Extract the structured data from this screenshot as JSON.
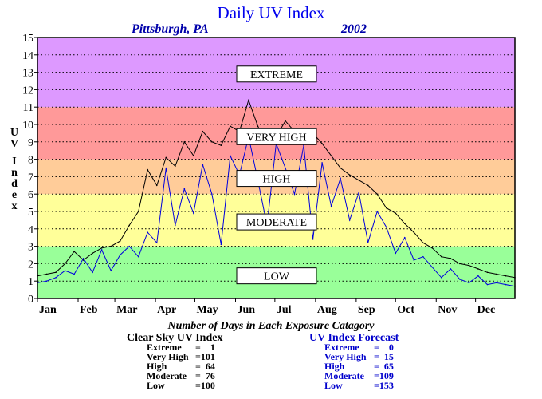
{
  "chart_data": {
    "type": "line",
    "title": "Daily UV Index",
    "subtitle_location": "Pittsburgh, PA",
    "subtitle_year": "2002",
    "ylabel": "UV Index",
    "xlabel": "",
    "ylim": [
      0,
      15
    ],
    "xlim": [
      1,
      365
    ],
    "grid": true,
    "y_ticks": [
      "0",
      "1",
      "2",
      "3",
      "4",
      "5",
      "6",
      "7",
      "8",
      "9",
      "10",
      "11",
      "12",
      "13",
      "14",
      "15"
    ],
    "months": [
      {
        "label": "Jan",
        "day": 1
      },
      {
        "label": "Feb",
        "day": 32
      },
      {
        "label": "Mar",
        "day": 60
      },
      {
        "label": "Apr",
        "day": 91
      },
      {
        "label": "May",
        "day": 121
      },
      {
        "label": "Jun",
        "day": 152
      },
      {
        "label": "Jul",
        "day": 182
      },
      {
        "label": "Aug",
        "day": 213
      },
      {
        "label": "Sep",
        "day": 244
      },
      {
        "label": "Oct",
        "day": 274
      },
      {
        "label": "Nov",
        "day": 305
      },
      {
        "label": "Dec",
        "day": 335
      }
    ],
    "bands": [
      {
        "label": "LOW",
        "from": 0,
        "to": 3,
        "color": "#99ff99",
        "label_y": 1.3
      },
      {
        "label": "MODERATE",
        "from": 3,
        "to": 6,
        "color": "#ffff99",
        "label_y": 4.4
      },
      {
        "label": "HIGH",
        "from": 6,
        "to": 8,
        "color": "#ffcc99",
        "label_y": 6.9
      },
      {
        "label": "VERY HIGH",
        "from": 8,
        "to": 11,
        "color": "#ff9999",
        "label_y": 9.3
      },
      {
        "label": "EXTREME",
        "from": 11,
        "to": 15,
        "color": "#dd99ff",
        "label_y": 12.9
      }
    ],
    "series": [
      {
        "name": "Clear Sky UV Index",
        "color": "#000000",
        "x": [
          1,
          8,
          15,
          22,
          29,
          36,
          43,
          50,
          57,
          64,
          71,
          78,
          85,
          92,
          99,
          106,
          113,
          120,
          127,
          134,
          141,
          148,
          155,
          162,
          169,
          176,
          183,
          190,
          197,
          204,
          211,
          218,
          225,
          232,
          239,
          246,
          253,
          260,
          267,
          274,
          281,
          288,
          295,
          302,
          309,
          316,
          323,
          330,
          337,
          344,
          351,
          358,
          365
        ],
        "y": [
          1.3,
          1.4,
          1.5,
          2.0,
          2.7,
          2.2,
          2.6,
          2.9,
          3.0,
          3.3,
          4.2,
          5.0,
          7.4,
          6.5,
          8.1,
          7.6,
          9.0,
          8.2,
          9.6,
          9.0,
          8.8,
          9.9,
          9.6,
          11.4,
          9.9,
          8.9,
          9.3,
          10.2,
          9.6,
          9.4,
          9.5,
          8.9,
          8.2,
          7.5,
          7.1,
          6.8,
          6.5,
          6.0,
          5.2,
          4.9,
          4.3,
          3.8,
          3.2,
          2.9,
          2.4,
          2.3,
          2.0,
          1.9,
          1.7,
          1.5,
          1.4,
          1.3,
          1.2
        ]
      },
      {
        "name": "UV Index Forecast",
        "color": "#0000dd",
        "x": [
          1,
          8,
          15,
          22,
          29,
          36,
          43,
          50,
          57,
          64,
          71,
          78,
          85,
          92,
          99,
          106,
          113,
          120,
          127,
          134,
          141,
          148,
          155,
          162,
          169,
          176,
          183,
          190,
          197,
          204,
          211,
          218,
          225,
          232,
          239,
          246,
          253,
          260,
          267,
          274,
          281,
          288,
          295,
          302,
          309,
          316,
          323,
          330,
          337,
          344,
          351,
          358,
          365
        ],
        "y": [
          0.9,
          1.0,
          1.2,
          1.6,
          1.4,
          2.3,
          1.5,
          2.8,
          1.6,
          2.5,
          3.0,
          2.4,
          3.8,
          3.2,
          7.5,
          4.2,
          6.3,
          4.9,
          7.7,
          6.0,
          3.1,
          8.2,
          7.1,
          9.3,
          6.8,
          4.2,
          8.9,
          7.5,
          6.0,
          8.8,
          3.4,
          7.8,
          5.3,
          6.9,
          4.5,
          6.1,
          3.2,
          5.0,
          4.1,
          2.6,
          3.5,
          2.2,
          2.4,
          1.8,
          1.2,
          1.7,
          1.1,
          0.9,
          1.3,
          0.8,
          0.9,
          0.8,
          0.7
        ]
      }
    ]
  },
  "summary": {
    "title": "Number of Days in Each Exposure Catagory",
    "clear_sky": {
      "heading": "Clear Sky UV Index",
      "rows": [
        {
          "label": "Extreme",
          "value": "=    1"
        },
        {
          "label": "Very High",
          "value": "=101"
        },
        {
          "label": "High",
          "value": "=  64"
        },
        {
          "label": "Moderate",
          "value": "=  76"
        },
        {
          "label": "Low",
          "value": "=100"
        }
      ]
    },
    "forecast": {
      "heading": "UV Index Forecast",
      "rows": [
        {
          "label": "Extreme",
          "value": "=    0"
        },
        {
          "label": "Very High",
          "value": "=  15"
        },
        {
          "label": "High",
          "value": "=  65"
        },
        {
          "label": "Moderate",
          "value": "=109"
        },
        {
          "label": "Low",
          "value": "=153"
        }
      ]
    }
  }
}
